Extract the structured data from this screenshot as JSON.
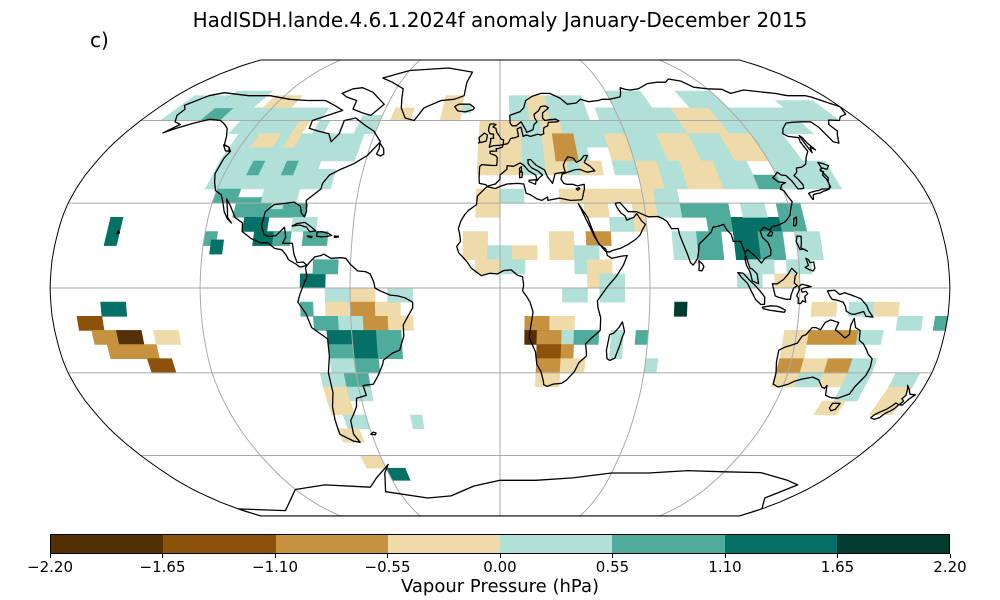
{
  "title": "HadISDH.lande.4.6.1.2024f anomaly January-December 2015",
  "panel_label": "c)",
  "colorbar": {
    "label": "Vapour Pressure (hPa)",
    "ticks": [
      "−2.20",
      "−1.65",
      "−1.10",
      "−0.55",
      "0.00",
      "0.55",
      "1.10",
      "1.65",
      "2.20"
    ],
    "bounds": [
      -2.2,
      -1.65,
      -1.1,
      -0.55,
      0.0,
      0.55,
      1.1,
      1.65,
      2.2
    ],
    "colors": [
      "#543005",
      "#8c510a",
      "#c6923f",
      "#eedba9",
      "#b0e0d8",
      "#4fac9c",
      "#047066",
      "#003c30"
    ]
  },
  "map": {
    "projection": "Robinson",
    "graticule": "30-degree grid",
    "variable": "vapour pressure anomaly",
    "colors": {
      "coast": "#000000",
      "grid": "#aaaaaa",
      "ocean": "#ffffff"
    }
  }
}
